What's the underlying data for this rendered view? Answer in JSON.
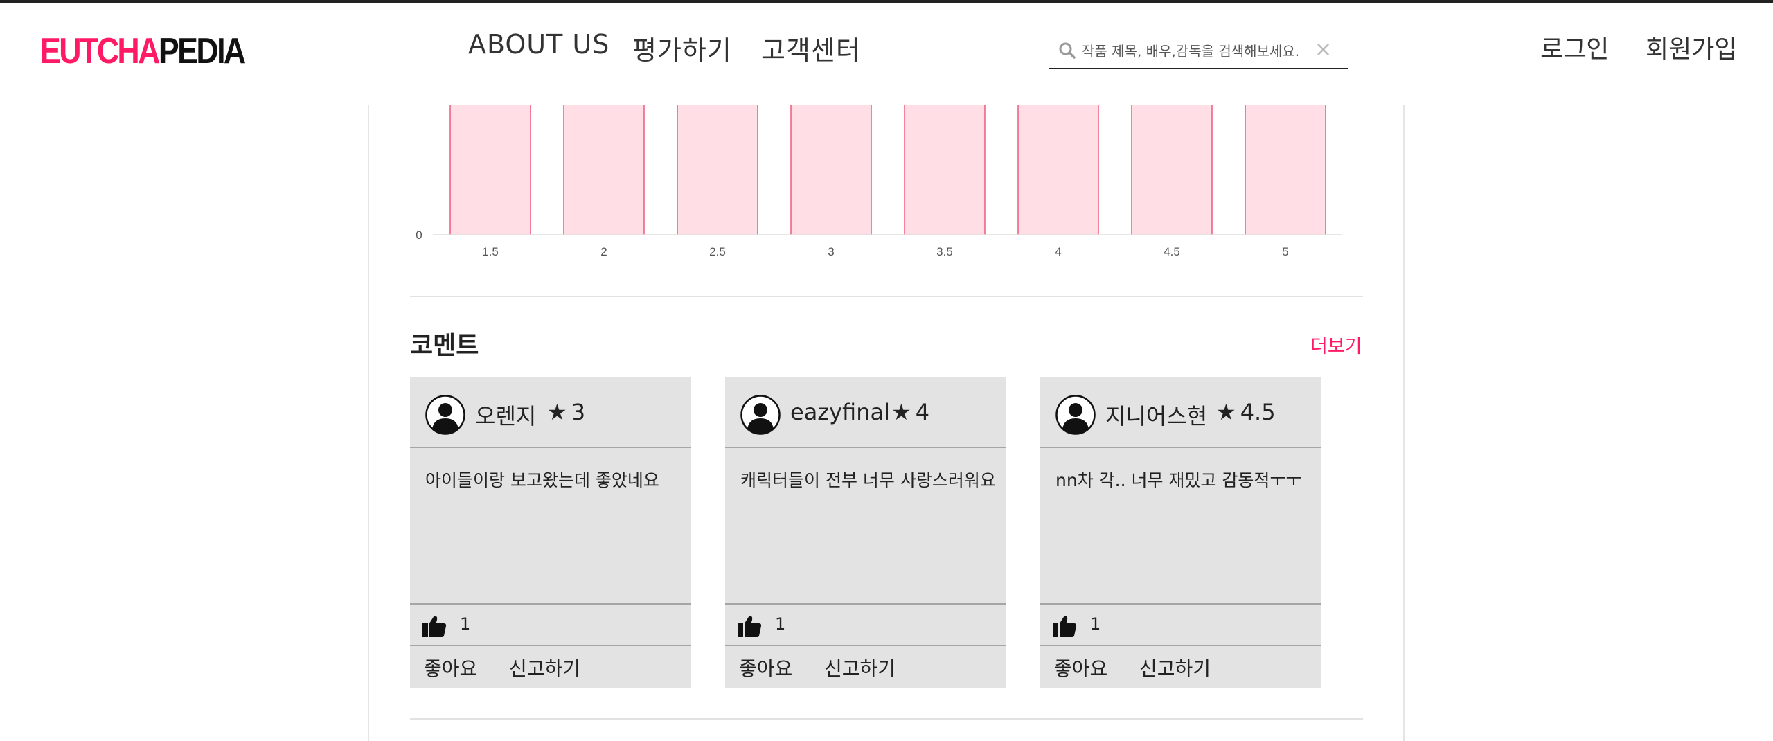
{
  "header": {
    "logo_part1": "EUTCHA",
    "logo_part2": "PEDIA",
    "nav": [
      "ABOUT US",
      "평가하기",
      "고객센터"
    ],
    "search_placeholder": "작품 제목, 배우,감독을 검색해보세요.",
    "search_clear": "×",
    "login": "로그인",
    "signup": "회원가입"
  },
  "colors": {
    "brand": "#ff1a66",
    "bar_fill": "#ffdfe5",
    "bar_stroke": "#f05a7e",
    "card_bg": "#e3e3e3"
  },
  "chart_data": {
    "type": "bar",
    "categories": [
      "1.5",
      "2",
      "2.5",
      "3",
      "3.5",
      "4",
      "4.5",
      "5"
    ],
    "values": [
      1,
      1,
      1,
      1,
      1,
      1,
      1,
      1
    ],
    "ytick_labels": [
      "0"
    ],
    "note_visible": "top portion of bars cut off at viewport edge"
  },
  "comments": {
    "title": "코멘트",
    "more": "더보기",
    "like_label": "좋아요",
    "report_label": "신고하기",
    "items": [
      {
        "user": "오렌지",
        "rating": "3",
        "text": "아이들이랑 보고왔는데 좋았네요",
        "likes": "1"
      },
      {
        "user": "eazyfinal",
        "rating": "4",
        "text": "캐릭터들이 전부 너무 사랑스러워요",
        "likes": "1"
      },
      {
        "user": "지니어스현",
        "rating": "4.5",
        "text": "nn차 각.. 너무 재밌고 감동적ㅜㅜ",
        "likes": "1"
      }
    ]
  },
  "icons": {
    "search": "search-icon",
    "avatar": "user-avatar-icon",
    "like": "thumbs-up-icon",
    "star": "★"
  }
}
